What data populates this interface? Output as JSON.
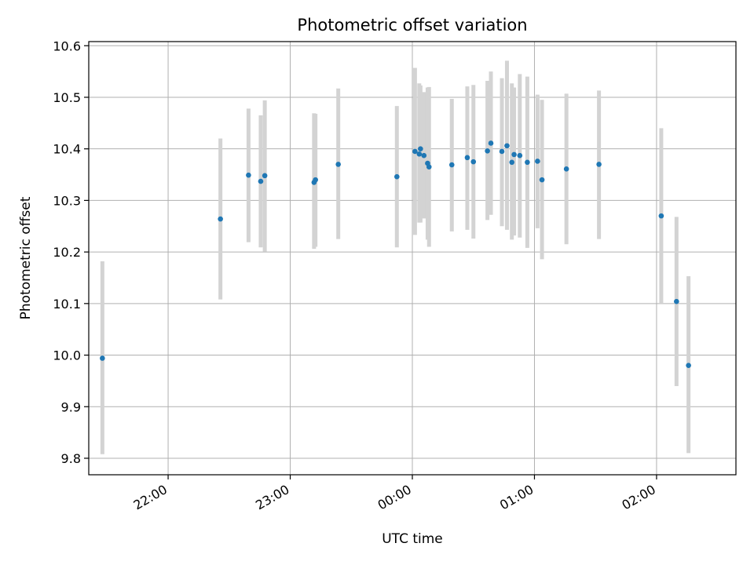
{
  "chart_data": {
    "type": "scatter",
    "title": "Photometric offset variation",
    "xlabel": "UTC time",
    "ylabel": "Photometric offset",
    "grid": true,
    "colors": {
      "point": "#1f77b4",
      "errorbar": "#d3d3d3",
      "grid": "#b0b0b0"
    },
    "xlim_minutes": [
      -159,
      159
    ],
    "ylim": [
      9.768,
      10.608
    ],
    "x_ticks": [
      {
        "minutes": -120,
        "label": "22:00"
      },
      {
        "minutes": -60,
        "label": "23:00"
      },
      {
        "minutes": 0,
        "label": "00:00"
      },
      {
        "minutes": 60,
        "label": "01:00"
      },
      {
        "minutes": 120,
        "label": "02:00"
      }
    ],
    "y_ticks": [
      {
        "value": 9.8,
        "label": "9.8"
      },
      {
        "value": 9.9,
        "label": "9.9"
      },
      {
        "value": 10.0,
        "label": "10.0"
      },
      {
        "value": 10.1,
        "label": "10.1"
      },
      {
        "value": 10.2,
        "label": "10.2"
      },
      {
        "value": 10.3,
        "label": "10.3"
      },
      {
        "value": 10.4,
        "label": "10.4"
      },
      {
        "value": 10.5,
        "label": "10.5"
      },
      {
        "value": 10.6,
        "label": "10.6"
      }
    ],
    "points": [
      {
        "minutes": -152.3,
        "y": 9.994,
        "err_low": 9.808,
        "err_high": 10.182
      },
      {
        "minutes": -94.3,
        "y": 10.264,
        "err_low": 10.108,
        "err_high": 10.42
      },
      {
        "minutes": -80.5,
        "y": 10.349,
        "err_low": 10.219,
        "err_high": 10.478
      },
      {
        "minutes": -74.5,
        "y": 10.337,
        "err_low": 10.209,
        "err_high": 10.465
      },
      {
        "minutes": -72.5,
        "y": 10.348,
        "err_low": 10.201,
        "err_high": 10.494
      },
      {
        "minutes": -48.3,
        "y": 10.335,
        "err_low": 10.206,
        "err_high": 10.469
      },
      {
        "minutes": -47.6,
        "y": 10.34,
        "err_low": 10.21,
        "err_high": 10.468
      },
      {
        "minutes": -36.4,
        "y": 10.37,
        "err_low": 10.225,
        "err_high": 10.517
      },
      {
        "minutes": -7.6,
        "y": 10.346,
        "err_low": 10.209,
        "err_high": 10.483
      },
      {
        "minutes": 1.3,
        "y": 10.395,
        "err_low": 10.233,
        "err_high": 10.557
      },
      {
        "minutes": 3.4,
        "y": 10.39,
        "err_low": 10.257,
        "err_high": 10.527
      },
      {
        "minutes": 4.0,
        "y": 10.4,
        "err_low": 10.257,
        "err_high": 10.523
      },
      {
        "minutes": 5.7,
        "y": 10.387,
        "err_low": 10.265,
        "err_high": 10.51
      },
      {
        "minutes": 7.5,
        "y": 10.372,
        "err_low": 10.224,
        "err_high": 10.519
      },
      {
        "minutes": 8.2,
        "y": 10.365,
        "err_low": 10.21,
        "err_high": 10.52
      },
      {
        "minutes": 19.4,
        "y": 10.369,
        "err_low": 10.24,
        "err_high": 10.497
      },
      {
        "minutes": 27.0,
        "y": 10.383,
        "err_low": 10.243,
        "err_high": 10.521
      },
      {
        "minutes": 30.0,
        "y": 10.375,
        "err_low": 10.226,
        "err_high": 10.524
      },
      {
        "minutes": 36.9,
        "y": 10.396,
        "err_low": 10.262,
        "err_high": 10.532
      },
      {
        "minutes": 38.6,
        "y": 10.411,
        "err_low": 10.272,
        "err_high": 10.55
      },
      {
        "minutes": 44.0,
        "y": 10.395,
        "err_low": 10.25,
        "err_high": 10.537
      },
      {
        "minutes": 46.5,
        "y": 10.406,
        "err_low": 10.243,
        "err_high": 10.571
      },
      {
        "minutes": 48.9,
        "y": 10.374,
        "err_low": 10.224,
        "err_high": 10.527
      },
      {
        "minutes": 50.0,
        "y": 10.389,
        "err_low": 10.232,
        "err_high": 10.519
      },
      {
        "minutes": 52.8,
        "y": 10.387,
        "err_low": 10.228,
        "err_high": 10.545
      },
      {
        "minutes": 56.5,
        "y": 10.374,
        "err_low": 10.208,
        "err_high": 10.54
      },
      {
        "minutes": 61.5,
        "y": 10.376,
        "err_low": 10.246,
        "err_high": 10.505
      },
      {
        "minutes": 63.7,
        "y": 10.34,
        "err_low": 10.186,
        "err_high": 10.495
      },
      {
        "minutes": 75.7,
        "y": 10.361,
        "err_low": 10.215,
        "err_high": 10.507
      },
      {
        "minutes": 91.7,
        "y": 10.37,
        "err_low": 10.225,
        "err_high": 10.513
      },
      {
        "minutes": 122.3,
        "y": 10.27,
        "err_low": 10.1,
        "err_high": 10.44
      },
      {
        "minutes": 129.8,
        "y": 10.104,
        "err_low": 9.94,
        "err_high": 10.268
      },
      {
        "minutes": 135.7,
        "y": 9.98,
        "err_low": 9.81,
        "err_high": 10.153
      }
    ]
  }
}
